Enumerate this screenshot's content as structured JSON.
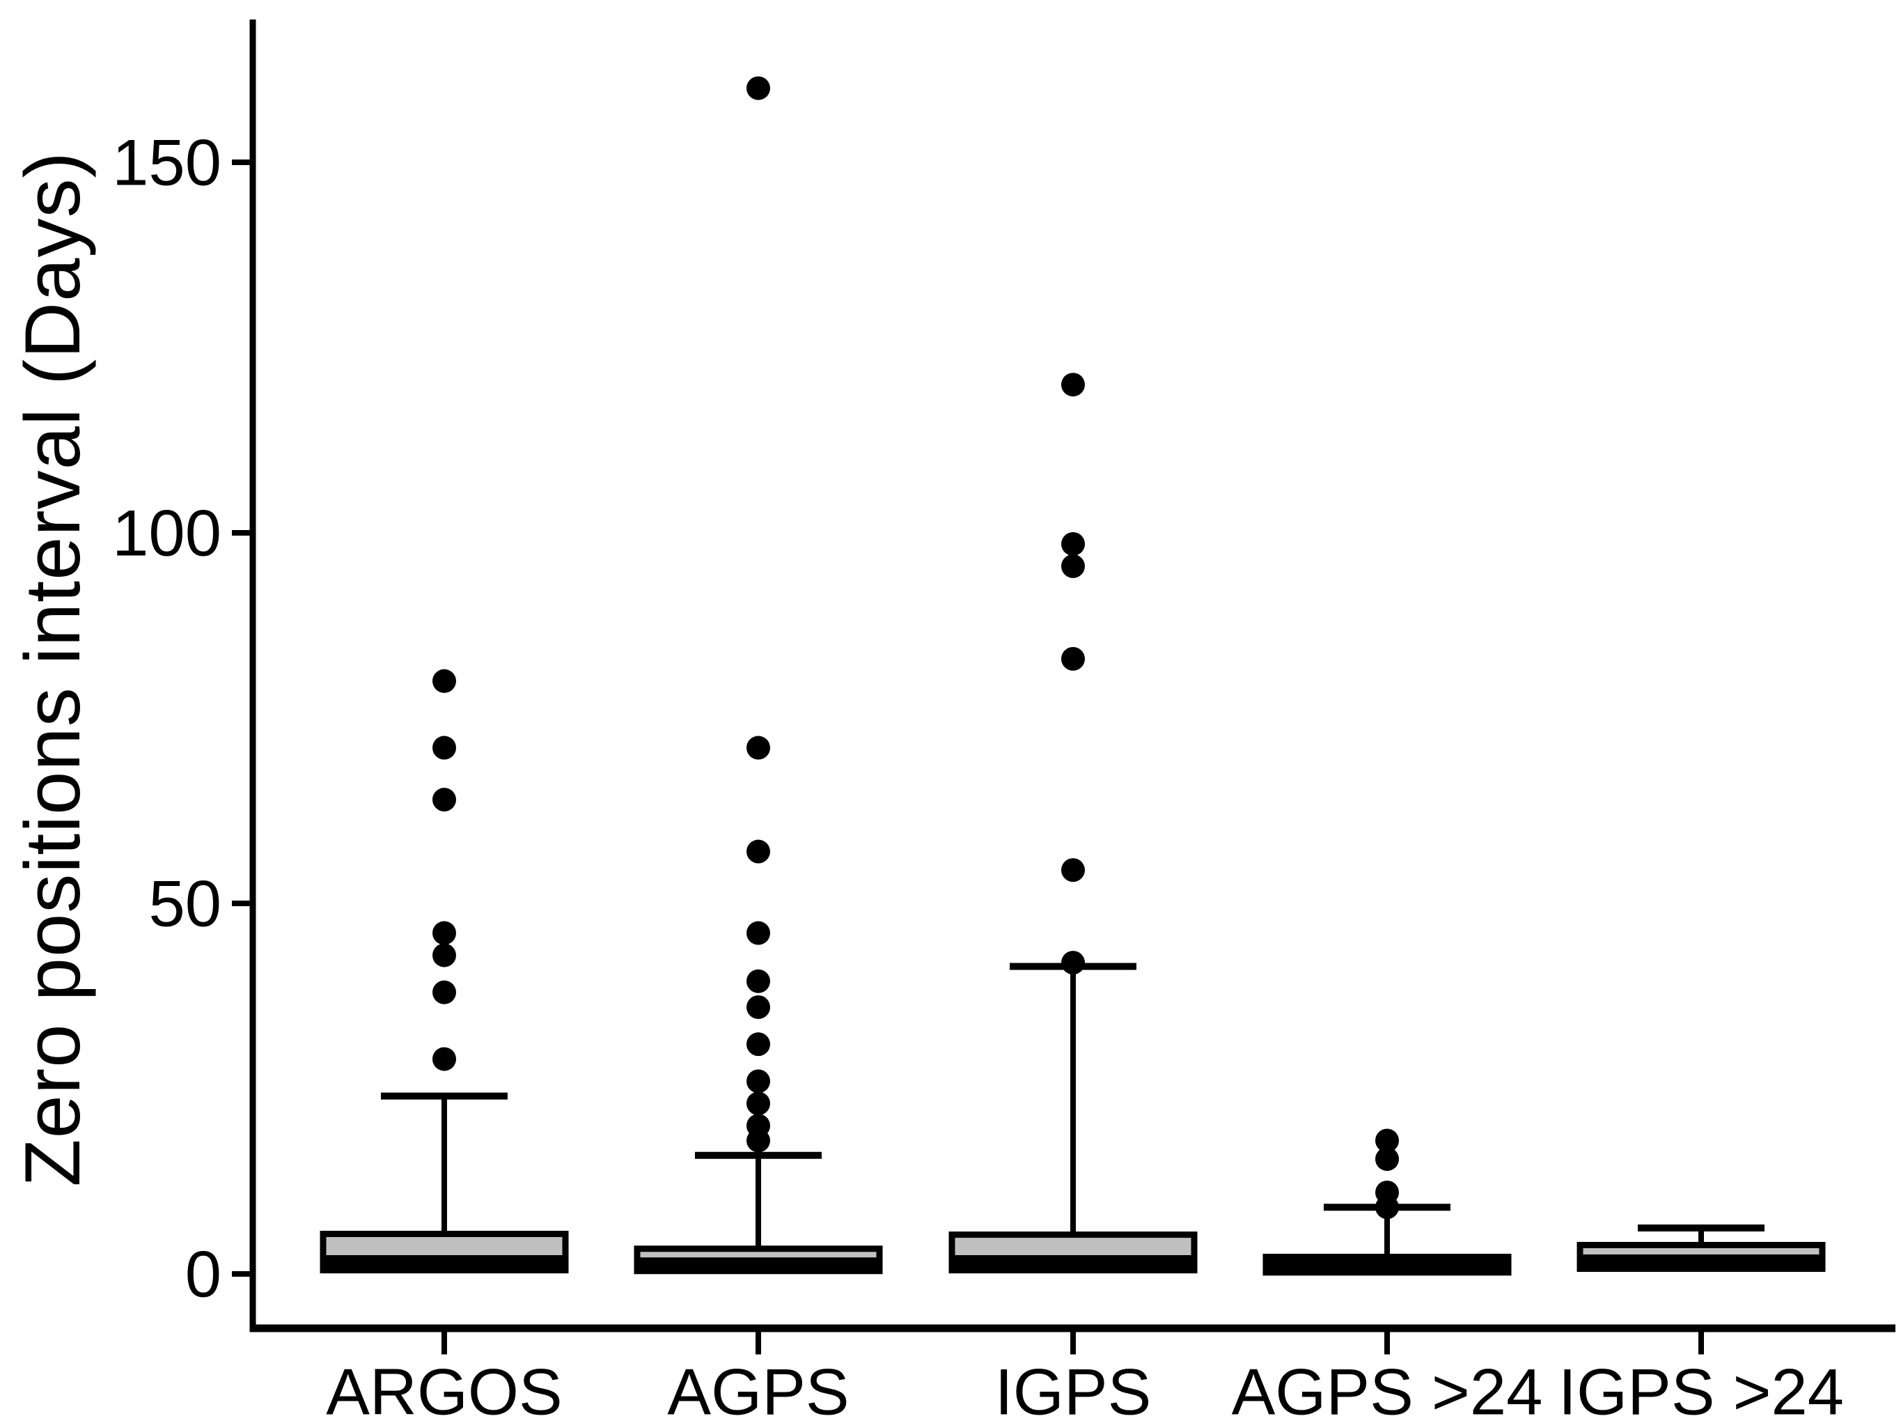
{
  "figure": {
    "background": "#ffffff",
    "foreground": "#000000"
  },
  "chart_data": {
    "type": "boxplot",
    "title": "",
    "xlabel": "",
    "ylabel": "Zero positions interval (Days)",
    "yticks": [
      0,
      50,
      100,
      150
    ],
    "ylim": [
      -7,
      169
    ],
    "grid": false,
    "legend": null,
    "categories": [
      "ARGOS",
      "AGPS",
      "IGPS",
      "AGPS >24",
      "IGPS >24"
    ],
    "series": [
      {
        "name": "ARGOS",
        "q1": 0.5,
        "median": 1.5,
        "q3": 5.4,
        "whisker_low": null,
        "whisker_high": 24,
        "outliers": [
          80,
          71,
          64,
          46,
          43,
          38,
          29
        ]
      },
      {
        "name": "AGPS",
        "q1": 0.4,
        "median": 1.2,
        "q3": 3.4,
        "whisker_low": null,
        "whisker_high": 16,
        "outliers": [
          160,
          71,
          57,
          46,
          39.5,
          36,
          31,
          26,
          23,
          20,
          18
        ]
      },
      {
        "name": "IGPS",
        "q1": 0.5,
        "median": 1.5,
        "q3": 5.3,
        "whisker_low": null,
        "whisker_high": 41.5,
        "outliers": [
          120,
          98.5,
          95.5,
          83,
          54.5,
          42
        ]
      },
      {
        "name": "AGPS >24",
        "q1": 0.2,
        "median": 1.2,
        "q3": 2.3,
        "whisker_low": null,
        "whisker_high": 9,
        "outliers": [
          18,
          15.5,
          11,
          9
        ]
      },
      {
        "name": "IGPS >24",
        "q1": 0.7,
        "median": 1.6,
        "q3": 3.9,
        "whisker_low": null,
        "whisker_high": 6.2,
        "outliers": []
      }
    ],
    "style": {
      "box_fill": "#c0c0c0",
      "stroke": "#000000",
      "background": "#ffffff"
    }
  }
}
